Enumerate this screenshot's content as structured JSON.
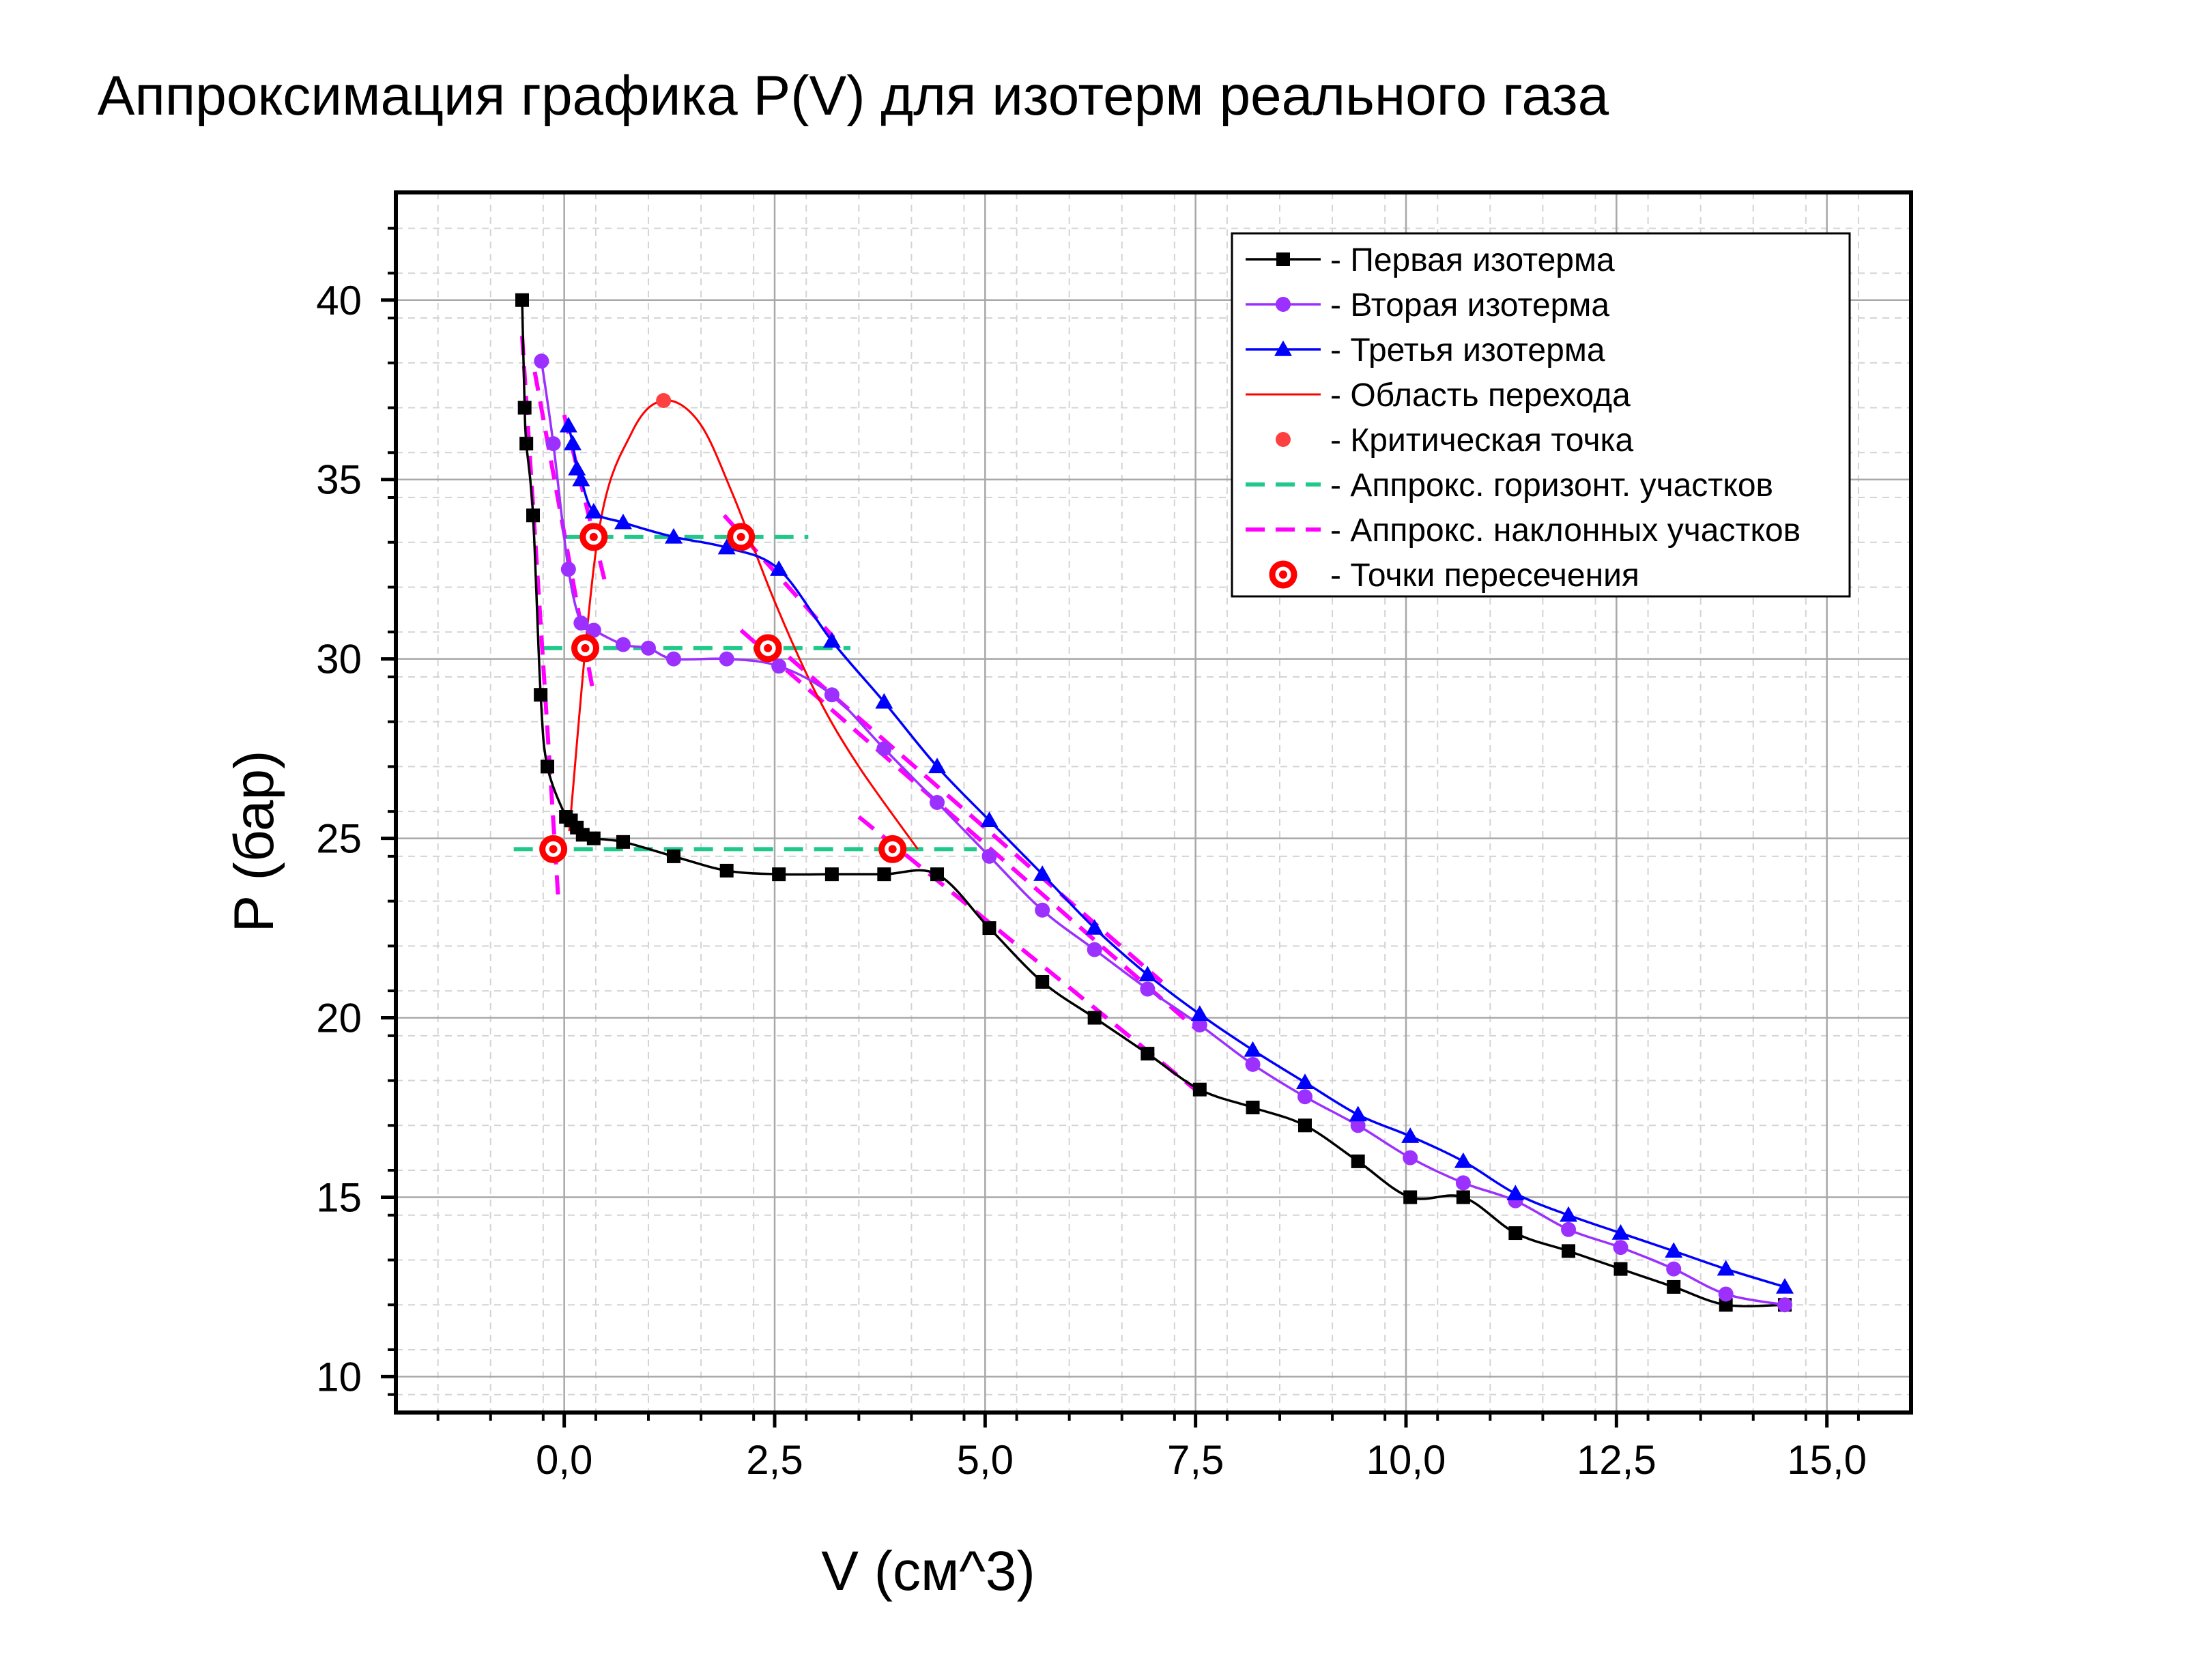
{
  "chart_data": {
    "type": "line",
    "title": "Аппроксимация графика P(V) для изотерм реального газа",
    "xlabel": "V (см^3)",
    "ylabel": "P (бар)",
    "xlim": [
      -2.0,
      16.0
    ],
    "ylim": [
      9.0,
      43.0
    ],
    "x_ticks": [
      0.0,
      2.5,
      5.0,
      7.5,
      10.0,
      12.5,
      15.0
    ],
    "x_tick_labels": [
      "0,0",
      "2,5",
      "5,0",
      "7,5",
      "10,0",
      "12,5",
      "15,0"
    ],
    "y_ticks": [
      10,
      15,
      20,
      25,
      30,
      35,
      40
    ],
    "y_tick_labels": [
      "10",
      "15",
      "20",
      "25",
      "30",
      "35",
      "40"
    ],
    "grid": true,
    "legend_position": "top-right",
    "series": [
      {
        "name": "- Первая изотерма",
        "color": "#000000",
        "marker": "square",
        "x": [
          -0.5,
          -0.47,
          -0.45,
          -0.37,
          -0.28,
          -0.2,
          0.02,
          0.08,
          0.15,
          0.22,
          0.35,
          0.7,
          1.3,
          1.93,
          2.55,
          3.18,
          3.8,
          4.43,
          5.05,
          5.68,
          6.3,
          6.93,
          7.55,
          8.18,
          8.8,
          9.43,
          10.05,
          10.68,
          11.3,
          11.93,
          12.55,
          13.18,
          13.8,
          14.5
        ],
        "y": [
          40.0,
          37.0,
          36.0,
          34.0,
          29.0,
          27.0,
          25.6,
          25.5,
          25.3,
          25.1,
          25.0,
          24.9,
          24.5,
          24.1,
          24.0,
          24.0,
          24.0,
          24.0,
          22.5,
          21.0,
          20.0,
          19.0,
          18.0,
          17.5,
          17.0,
          16.0,
          15.0,
          15.0,
          14.0,
          13.5,
          13.0,
          12.5,
          12.0,
          12.0
        ]
      },
      {
        "name": "- Вторая изотерма",
        "color": "#9B30FF",
        "marker": "circle",
        "x": [
          -0.27,
          -0.13,
          0.05,
          0.2,
          0.35,
          0.7,
          1.0,
          1.3,
          1.93,
          2.55,
          3.18,
          3.8,
          4.43,
          5.05,
          5.68,
          6.3,
          6.93,
          7.55,
          8.18,
          8.8,
          9.43,
          10.05,
          10.68,
          11.3,
          11.93,
          12.55,
          13.18,
          13.8,
          14.5
        ],
        "y": [
          38.3,
          36.0,
          32.5,
          31.0,
          30.8,
          30.4,
          30.3,
          30.0,
          30.0,
          29.8,
          29.0,
          27.5,
          26.0,
          24.5,
          23.0,
          21.9,
          20.8,
          19.8,
          18.7,
          17.8,
          17.0,
          16.1,
          15.4,
          14.9,
          14.1,
          13.6,
          13.0,
          12.3,
          12.0
        ]
      },
      {
        "name": "- Третья изотерма",
        "color": "#0000FF",
        "marker": "triangle",
        "x": [
          0.05,
          0.1,
          0.15,
          0.2,
          0.35,
          0.7,
          1.3,
          1.93,
          2.55,
          3.18,
          3.8,
          4.43,
          5.05,
          5.68,
          6.3,
          6.93,
          7.55,
          8.18,
          8.8,
          9.43,
          10.05,
          10.68,
          11.3,
          11.93,
          12.55,
          13.18,
          13.8,
          14.5
        ],
        "y": [
          36.5,
          36.0,
          35.3,
          35.0,
          34.1,
          33.8,
          33.4,
          33.1,
          32.5,
          30.5,
          28.8,
          27.0,
          25.5,
          24.0,
          22.5,
          21.2,
          20.1,
          19.1,
          18.2,
          17.3,
          16.7,
          16.0,
          15.1,
          14.5,
          14.0,
          13.5,
          13.0,
          12.5
        ]
      }
    ],
    "transition_region": {
      "name": "- Область перехода",
      "color": "#FF0000",
      "x": [
        0.06,
        0.4,
        0.8,
        1.18,
        1.6,
        2.0,
        2.5,
        3.0,
        3.5,
        4.2
      ],
      "y": [
        25.2,
        33.4,
        36.3,
        37.2,
        36.6,
        34.6,
        31.6,
        29.0,
        27.0,
        24.7
      ]
    },
    "critical_point": {
      "name": "- Критическая точка",
      "color": "#FF4040",
      "x": 1.18,
      "y": 37.2
    },
    "horizontal_fits": {
      "name": "- Аппрокс. горизонт. участков",
      "color": "#20C98A",
      "lines": [
        {
          "x": [
            0.0,
            2.9
          ],
          "y": [
            33.4,
            33.4
          ]
        },
        {
          "x": [
            -0.25,
            3.4
          ],
          "y": [
            30.3,
            30.3
          ]
        },
        {
          "x": [
            -0.6,
            4.9
          ],
          "y": [
            24.7,
            24.7
          ]
        }
      ]
    },
    "slope_fits": {
      "name": "- Аппрокс. наклонных участков",
      "color": "#FF00FF",
      "lines": [
        {
          "x": [
            -0.5,
            -0.07
          ],
          "y": [
            39.0,
            23.3
          ]
        },
        {
          "x": [
            -0.35,
            0.35
          ],
          "y": [
            38.0,
            29.0
          ]
        },
        {
          "x": [
            0.0,
            0.5
          ],
          "y": [
            36.8,
            32.0
          ]
        },
        {
          "x": [
            1.9,
            3.2
          ],
          "y": [
            34.0,
            30.6
          ]
        },
        {
          "x": [
            2.1,
            7.5
          ],
          "y": [
            30.8,
            19.7
          ]
        },
        {
          "x": [
            2.4,
            7.1
          ],
          "y": [
            30.6,
            21.0
          ]
        },
        {
          "x": [
            3.5,
            7.6
          ],
          "y": [
            25.6,
            17.8
          ]
        }
      ]
    },
    "intersection_points": {
      "name": "- Точки пересечения",
      "color": "#FF0000",
      "x": [
        0.35,
        2.1,
        0.25,
        2.42,
        -0.13,
        3.9
      ],
      "y": [
        33.4,
        33.4,
        30.3,
        30.3,
        24.7,
        24.7
      ]
    }
  }
}
